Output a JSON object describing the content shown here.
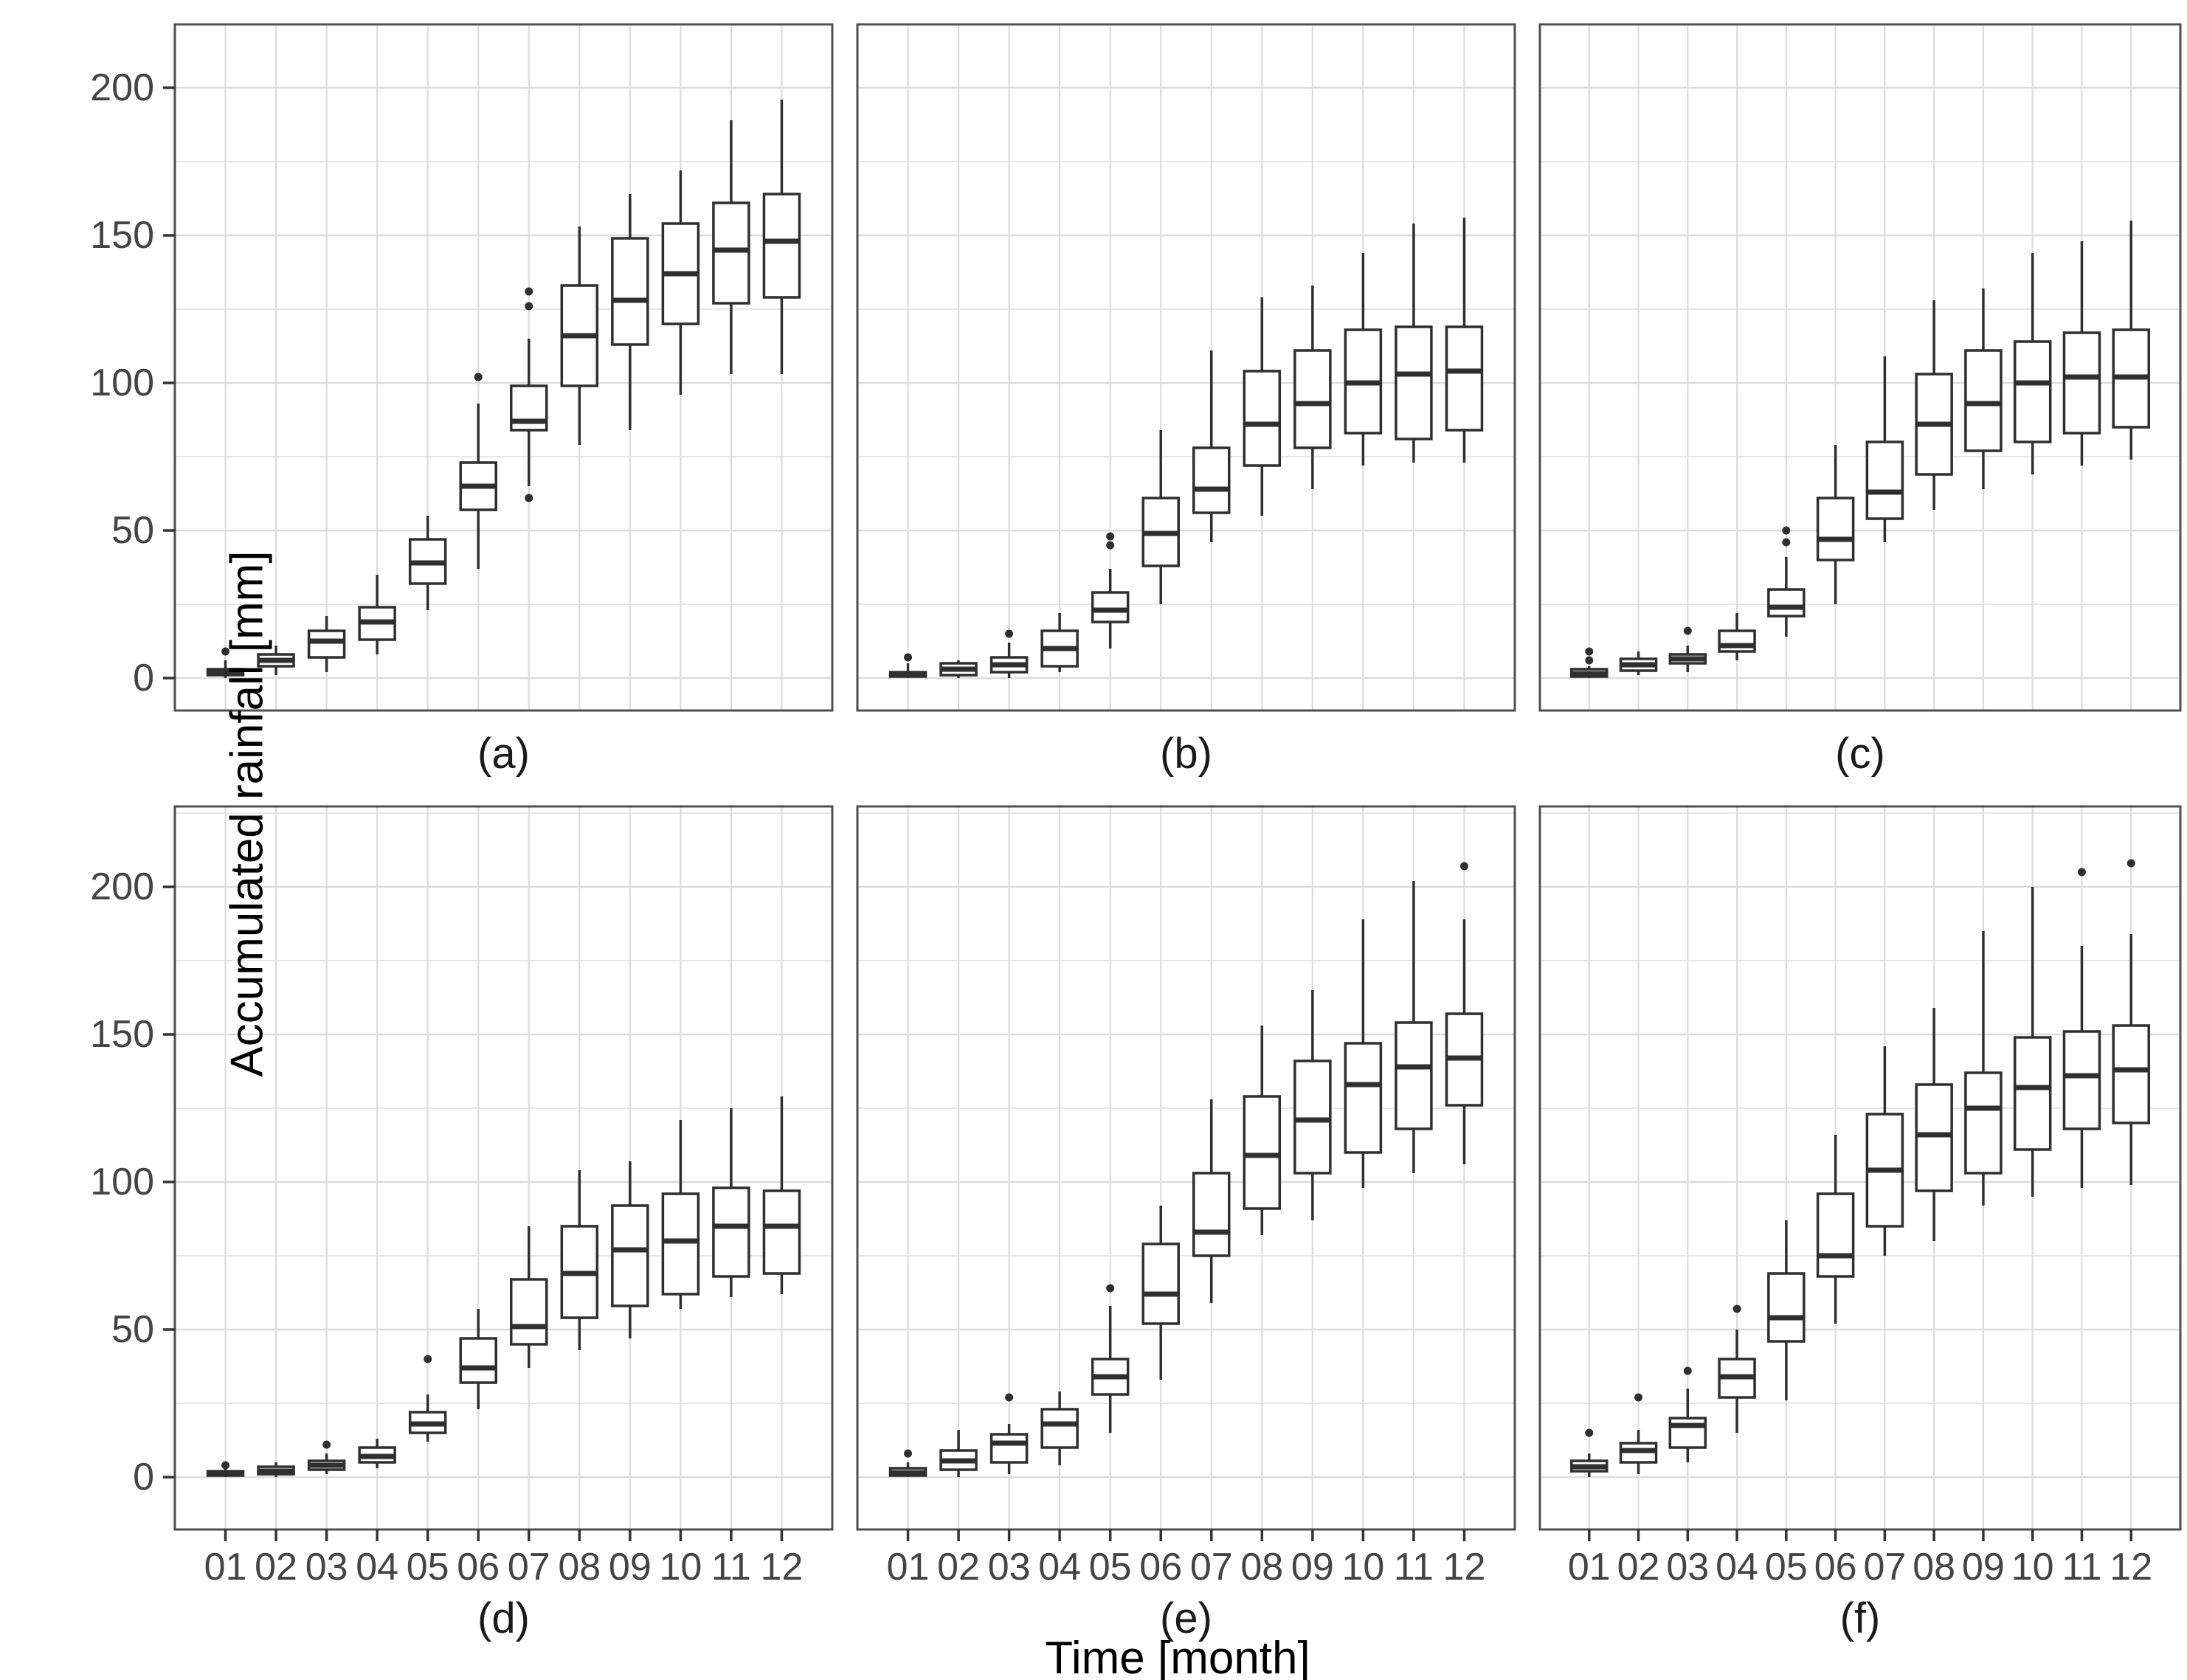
{
  "axes": {
    "y_title": "Accumulated rainfall [mm]",
    "x_title": "Time [month]",
    "y_ticks": [
      0,
      50,
      100,
      150,
      200
    ],
    "y_minor": [
      25,
      75,
      125,
      175,
      225
    ],
    "x_ticks": [
      "01",
      "02",
      "03",
      "04",
      "05",
      "06",
      "07",
      "08",
      "09",
      "10",
      "11",
      "12"
    ]
  },
  "style": {
    "background": "#ffffff",
    "panel_fill": "#ffffff",
    "panel_border": "#4f4f4f",
    "grid_major": "#dcdcdc",
    "grid_minor": "#e7e7e7",
    "box_stroke": "#2f2f2f",
    "box_fill": "#ffffff",
    "tick_mark": "#333333",
    "tick_text": "#444444",
    "caption_text": "#1a1a1a"
  },
  "chart_data": [
    {
      "type": "boxplot",
      "label": "(a)",
      "categories": [
        "01",
        "02",
        "03",
        "04",
        "05",
        "06",
        "07",
        "08",
        "09",
        "10",
        "11",
        "12"
      ],
      "ylim": [
        -11,
        221
      ],
      "boxes": [
        {
          "month": "01",
          "lo": 0,
          "q1": 1,
          "med": 2,
          "q3": 3,
          "hi": 6,
          "out": [
            9
          ]
        },
        {
          "month": "02",
          "lo": 1,
          "q1": 4,
          "med": 6,
          "q3": 8,
          "hi": 11,
          "out": []
        },
        {
          "month": "03",
          "lo": 2,
          "q1": 7,
          "med": 12.5,
          "q3": 16,
          "hi": 21,
          "out": []
        },
        {
          "month": "04",
          "lo": 8,
          "q1": 13,
          "med": 19,
          "q3": 24,
          "hi": 35,
          "out": []
        },
        {
          "month": "05",
          "lo": 23,
          "q1": 32,
          "med": 39,
          "q3": 47,
          "hi": 55,
          "out": []
        },
        {
          "month": "06",
          "lo": 37,
          "q1": 57,
          "med": 65,
          "q3": 73,
          "hi": 93,
          "out": [
            102
          ]
        },
        {
          "month": "07",
          "lo": 65,
          "q1": 84,
          "med": 87,
          "q3": 99,
          "hi": 115,
          "out": [
            61,
            126,
            131
          ]
        },
        {
          "month": "08",
          "lo": 79,
          "q1": 99,
          "med": 116,
          "q3": 133,
          "hi": 153,
          "out": []
        },
        {
          "month": "09",
          "lo": 84,
          "q1": 113,
          "med": 128,
          "q3": 149,
          "hi": 164,
          "out": []
        },
        {
          "month": "10",
          "lo": 96,
          "q1": 120,
          "med": 137,
          "q3": 154,
          "hi": 172,
          "out": []
        },
        {
          "month": "11",
          "lo": 103,
          "q1": 127,
          "med": 145,
          "q3": 161,
          "hi": 189,
          "out": []
        },
        {
          "month": "12",
          "lo": 103,
          "q1": 129,
          "med": 148,
          "q3": 164,
          "hi": 196,
          "out": []
        }
      ]
    },
    {
      "type": "boxplot",
      "label": "(b)",
      "categories": [
        "01",
        "02",
        "03",
        "04",
        "05",
        "06",
        "07",
        "08",
        "09",
        "10",
        "11",
        "12"
      ],
      "ylim": [
        -11,
        221
      ],
      "boxes": [
        {
          "month": "01",
          "lo": 0,
          "q1": 0.5,
          "med": 1,
          "q3": 2,
          "hi": 5,
          "out": [
            7
          ]
        },
        {
          "month": "02",
          "lo": 0,
          "q1": 1,
          "med": 3,
          "q3": 5,
          "hi": 6,
          "out": []
        },
        {
          "month": "03",
          "lo": 0,
          "q1": 2,
          "med": 4.5,
          "q3": 7,
          "hi": 12,
          "out": [
            15
          ]
        },
        {
          "month": "04",
          "lo": 2,
          "q1": 4,
          "med": 10,
          "q3": 16,
          "hi": 22,
          "out": []
        },
        {
          "month": "05",
          "lo": 10,
          "q1": 19,
          "med": 23,
          "q3": 29,
          "hi": 37,
          "out": [
            45,
            48
          ]
        },
        {
          "month": "06",
          "lo": 25,
          "q1": 38,
          "med": 49,
          "q3": 61,
          "hi": 84,
          "out": []
        },
        {
          "month": "07",
          "lo": 46,
          "q1": 56,
          "med": 64,
          "q3": 78,
          "hi": 111,
          "out": []
        },
        {
          "month": "08",
          "lo": 55,
          "q1": 72,
          "med": 86,
          "q3": 104,
          "hi": 129,
          "out": []
        },
        {
          "month": "09",
          "lo": 64,
          "q1": 78,
          "med": 93,
          "q3": 111,
          "hi": 133,
          "out": []
        },
        {
          "month": "10",
          "lo": 72,
          "q1": 83,
          "med": 100,
          "q3": 118,
          "hi": 144,
          "out": []
        },
        {
          "month": "11",
          "lo": 73,
          "q1": 81,
          "med": 103,
          "q3": 119,
          "hi": 154,
          "out": []
        },
        {
          "month": "12",
          "lo": 73,
          "q1": 84,
          "med": 104,
          "q3": 119,
          "hi": 156,
          "out": []
        }
      ]
    },
    {
      "type": "boxplot",
      "label": "(c)",
      "categories": [
        "01",
        "02",
        "03",
        "04",
        "05",
        "06",
        "07",
        "08",
        "09",
        "10",
        "11",
        "12"
      ],
      "ylim": [
        -11,
        221
      ],
      "boxes": [
        {
          "month": "01",
          "lo": 0,
          "q1": 0.5,
          "med": 1.5,
          "q3": 3,
          "hi": 4,
          "out": [
            6,
            9
          ]
        },
        {
          "month": "02",
          "lo": 1,
          "q1": 2.5,
          "med": 4.5,
          "q3": 6.5,
          "hi": 9,
          "out": []
        },
        {
          "month": "03",
          "lo": 2,
          "q1": 5,
          "med": 6.5,
          "q3": 8,
          "hi": 11,
          "out": [
            16
          ]
        },
        {
          "month": "04",
          "lo": 6,
          "q1": 9,
          "med": 11,
          "q3": 16,
          "hi": 22,
          "out": []
        },
        {
          "month": "05",
          "lo": 14,
          "q1": 21,
          "med": 24,
          "q3": 30,
          "hi": 41,
          "out": [
            46,
            50
          ]
        },
        {
          "month": "06",
          "lo": 25,
          "q1": 40,
          "med": 47,
          "q3": 61,
          "hi": 79,
          "out": []
        },
        {
          "month": "07",
          "lo": 46,
          "q1": 54,
          "med": 63,
          "q3": 80,
          "hi": 109,
          "out": []
        },
        {
          "month": "08",
          "lo": 57,
          "q1": 69,
          "med": 86,
          "q3": 103,
          "hi": 128,
          "out": []
        },
        {
          "month": "09",
          "lo": 64,
          "q1": 77,
          "med": 93,
          "q3": 111,
          "hi": 132,
          "out": []
        },
        {
          "month": "10",
          "lo": 69,
          "q1": 80,
          "med": 100,
          "q3": 114,
          "hi": 144,
          "out": []
        },
        {
          "month": "11",
          "lo": 72,
          "q1": 83,
          "med": 102,
          "q3": 117,
          "hi": 148,
          "out": []
        },
        {
          "month": "12",
          "lo": 74,
          "q1": 85,
          "med": 102,
          "q3": 118,
          "hi": 155,
          "out": []
        }
      ]
    },
    {
      "type": "boxplot",
      "label": "(d)",
      "categories": [
        "01",
        "02",
        "03",
        "04",
        "05",
        "06",
        "07",
        "08",
        "09",
        "10",
        "11",
        "12"
      ],
      "ylim": [
        -18,
        227
      ],
      "boxes": [
        {
          "month": "01",
          "lo": 0,
          "q1": 0.5,
          "med": 1,
          "q3": 2,
          "hi": 3,
          "out": [
            4
          ]
        },
        {
          "month": "02",
          "lo": 0,
          "q1": 1,
          "med": 2,
          "q3": 3.5,
          "hi": 5,
          "out": []
        },
        {
          "month": "03",
          "lo": 1,
          "q1": 2.5,
          "med": 4,
          "q3": 5.5,
          "hi": 8,
          "out": [
            11
          ]
        },
        {
          "month": "04",
          "lo": 3,
          "q1": 5,
          "med": 7,
          "q3": 10,
          "hi": 13,
          "out": []
        },
        {
          "month": "05",
          "lo": 12,
          "q1": 15,
          "med": 18,
          "q3": 22,
          "hi": 28,
          "out": [
            40
          ]
        },
        {
          "month": "06",
          "lo": 23,
          "q1": 32,
          "med": 37,
          "q3": 47,
          "hi": 57,
          "out": []
        },
        {
          "month": "07",
          "lo": 37,
          "q1": 45,
          "med": 51,
          "q3": 67,
          "hi": 85,
          "out": []
        },
        {
          "month": "08",
          "lo": 43,
          "q1": 54,
          "med": 69,
          "q3": 85,
          "hi": 104,
          "out": []
        },
        {
          "month": "09",
          "lo": 47,
          "q1": 58,
          "med": 77,
          "q3": 92,
          "hi": 107,
          "out": []
        },
        {
          "month": "10",
          "lo": 57,
          "q1": 62,
          "med": 80,
          "q3": 96,
          "hi": 121,
          "out": []
        },
        {
          "month": "11",
          "lo": 61,
          "q1": 68,
          "med": 85,
          "q3": 98,
          "hi": 125,
          "out": []
        },
        {
          "month": "12",
          "lo": 62,
          "q1": 69,
          "med": 85,
          "q3": 97,
          "hi": 129,
          "out": []
        }
      ]
    },
    {
      "type": "boxplot",
      "label": "(e)",
      "categories": [
        "01",
        "02",
        "03",
        "04",
        "05",
        "06",
        "07",
        "08",
        "09",
        "10",
        "11",
        "12"
      ],
      "ylim": [
        -18,
        227
      ],
      "boxes": [
        {
          "month": "01",
          "lo": 0,
          "q1": 0.5,
          "med": 1.5,
          "q3": 3,
          "hi": 5,
          "out": [
            8
          ]
        },
        {
          "month": "02",
          "lo": 0,
          "q1": 2.5,
          "med": 5.5,
          "q3": 9,
          "hi": 16,
          "out": []
        },
        {
          "month": "03",
          "lo": 1,
          "q1": 5,
          "med": 11.5,
          "q3": 14.5,
          "hi": 18,
          "out": [
            27
          ]
        },
        {
          "month": "04",
          "lo": 4,
          "q1": 10,
          "med": 18,
          "q3": 23,
          "hi": 29,
          "out": []
        },
        {
          "month": "05",
          "lo": 15,
          "q1": 28,
          "med": 34,
          "q3": 40,
          "hi": 58,
          "out": [
            64
          ]
        },
        {
          "month": "06",
          "lo": 33,
          "q1": 52,
          "med": 62,
          "q3": 79,
          "hi": 92,
          "out": []
        },
        {
          "month": "07",
          "lo": 59,
          "q1": 75,
          "med": 83,
          "q3": 103,
          "hi": 128,
          "out": []
        },
        {
          "month": "08",
          "lo": 82,
          "q1": 91,
          "med": 109,
          "q3": 129,
          "hi": 153,
          "out": []
        },
        {
          "month": "09",
          "lo": 87,
          "q1": 103,
          "med": 121,
          "q3": 141,
          "hi": 165,
          "out": []
        },
        {
          "month": "10",
          "lo": 98,
          "q1": 110,
          "med": 133,
          "q3": 147,
          "hi": 189,
          "out": []
        },
        {
          "month": "11",
          "lo": 103,
          "q1": 118,
          "med": 139,
          "q3": 154,
          "hi": 202,
          "out": []
        },
        {
          "month": "12",
          "lo": 106,
          "q1": 126,
          "med": 142,
          "q3": 157,
          "hi": 189,
          "out": [
            207
          ]
        }
      ]
    },
    {
      "type": "boxplot",
      "label": "(f)",
      "categories": [
        "01",
        "02",
        "03",
        "04",
        "05",
        "06",
        "07",
        "08",
        "09",
        "10",
        "11",
        "12"
      ],
      "ylim": [
        -18,
        227
      ],
      "boxes": [
        {
          "month": "01",
          "lo": 0,
          "q1": 2,
          "med": 3.5,
          "q3": 5.5,
          "hi": 8,
          "out": [
            15
          ]
        },
        {
          "month": "02",
          "lo": 1,
          "q1": 5,
          "med": 9,
          "q3": 11.5,
          "hi": 16,
          "out": [
            27
          ]
        },
        {
          "month": "03",
          "lo": 5,
          "q1": 10,
          "med": 17.5,
          "q3": 20,
          "hi": 30,
          "out": [
            36
          ]
        },
        {
          "month": "04",
          "lo": 15,
          "q1": 27,
          "med": 34,
          "q3": 40,
          "hi": 50,
          "out": [
            57
          ]
        },
        {
          "month": "05",
          "lo": 26,
          "q1": 46,
          "med": 54,
          "q3": 69,
          "hi": 87,
          "out": []
        },
        {
          "month": "06",
          "lo": 52,
          "q1": 68,
          "med": 75,
          "q3": 96,
          "hi": 116,
          "out": []
        },
        {
          "month": "07",
          "lo": 75,
          "q1": 85,
          "med": 104,
          "q3": 123,
          "hi": 146,
          "out": []
        },
        {
          "month": "08",
          "lo": 80,
          "q1": 97,
          "med": 116,
          "q3": 133,
          "hi": 159,
          "out": []
        },
        {
          "month": "09",
          "lo": 92,
          "q1": 103,
          "med": 125,
          "q3": 137,
          "hi": 185,
          "out": []
        },
        {
          "month": "10",
          "lo": 95,
          "q1": 111,
          "med": 132,
          "q3": 149,
          "hi": 200,
          "out": []
        },
        {
          "month": "11",
          "lo": 98,
          "q1": 118,
          "med": 136,
          "q3": 151,
          "hi": 180,
          "out": [
            205
          ]
        },
        {
          "month": "12",
          "lo": 99,
          "q1": 120,
          "med": 138,
          "q3": 153,
          "hi": 184,
          "out": [
            208
          ]
        }
      ]
    }
  ]
}
